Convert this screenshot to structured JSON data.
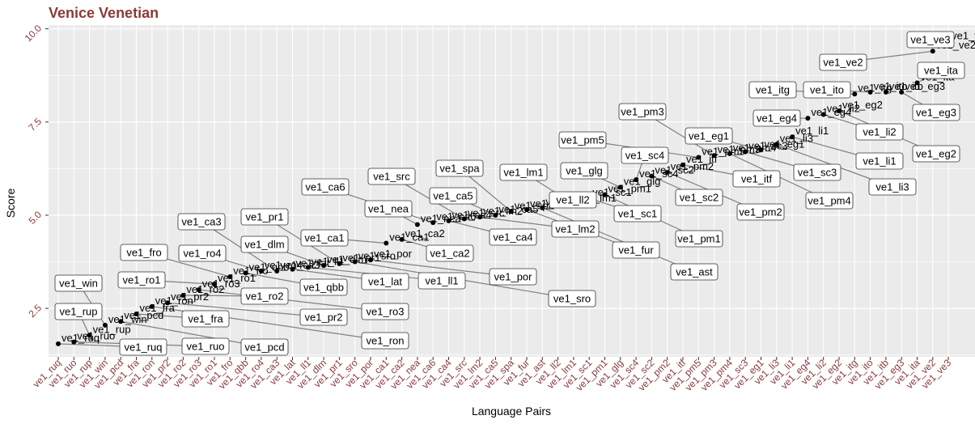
{
  "chart_data": {
    "type": "scatter",
    "title": "Venice Venetian",
    "xlabel": "Language Pairs",
    "ylabel": "Score",
    "ylim": [
      1.2,
      10.1
    ],
    "yticks": [
      2.5,
      5.0,
      7.5,
      10.0
    ],
    "ytick_labels": [
      "2.5",
      "5.0",
      "7.5",
      "10.0"
    ],
    "grid": true,
    "legend": "none",
    "colors": {
      "title": "#8B3A3A",
      "tick": "#8B3A3A",
      "panel": "#EBEBEB",
      "grid": "#FFFFFF",
      "point": "#000000",
      "connector": "#808080",
      "box_bg": "#FFFFFF",
      "box_border": "#333333"
    },
    "categories": [
      "ve1_ruq",
      "ve1_ruo",
      "ve1_rup",
      "ve1_win",
      "ve1_pcd",
      "ve1_fra",
      "ve1_ron",
      "ve1_pr2",
      "ve1_ro2",
      "ve1_ro3",
      "ve1_ro1",
      "ve1_fro",
      "ve1_qbb",
      "ve1_ro4",
      "ve1_ca3",
      "ve1_lat",
      "ve1_ll1",
      "ve1_dlm",
      "ve1_pr1",
      "ve1_sro",
      "ve1_por",
      "ve1_ca1",
      "ve1_ca2",
      "ve1_nea",
      "ve1_ca6",
      "ve1_ca4",
      "ve1_src",
      "ve1_lm2",
      "ve1_ca5",
      "ve1_spa",
      "ve1_fur",
      "ve1_ast",
      "ve1_ll2",
      "ve1_lm1",
      "ve1_sc1",
      "ve1_pm1",
      "ve1_glg",
      "ve1_sc4",
      "ve1_sc2",
      "ve1_pm2",
      "ve1_itf",
      "ve1_pm5",
      "ve1_pm3",
      "ve1_pm4",
      "ve1_sc3",
      "ve1_eg1",
      "ve1_li3",
      "ve1_li1",
      "ve1_eg4",
      "ve1_li2",
      "ve1_eg2",
      "ve1_itg",
      "ve1_ito",
      "ve1_itb",
      "ve1_eg3",
      "ve1_ita",
      "ve1_ve2",
      "ve1_ve3"
    ],
    "values": [
      1.55,
      1.6,
      1.78,
      2.05,
      2.15,
      2.35,
      2.55,
      2.65,
      2.85,
      3.0,
      3.15,
      3.35,
      3.45,
      3.5,
      3.5,
      3.55,
      3.6,
      3.65,
      3.7,
      3.75,
      3.8,
      4.25,
      4.35,
      4.75,
      4.8,
      4.85,
      4.9,
      4.95,
      5.0,
      5.1,
      5.15,
      5.2,
      5.25,
      5.3,
      5.45,
      5.55,
      5.75,
      5.95,
      6.05,
      6.15,
      6.35,
      6.55,
      6.6,
      6.65,
      6.7,
      6.75,
      6.9,
      7.1,
      7.6,
      7.7,
      7.8,
      8.25,
      8.3,
      8.3,
      8.3,
      8.55,
      9.4,
      9.65
    ],
    "point_labels": [
      "ve1_ruq",
      "ve1_ruo",
      "ve1_rup",
      "ve1_win",
      "ve1_pcd",
      "ve1_fra",
      "ve1_ron",
      "ve1_pr2",
      "ve1_ro2",
      "ve1_ro3",
      "ve1_ro1",
      "ve1_fro",
      "ve1_qbb",
      "ve1_ro4",
      "ve1_ca3",
      "ve1_lat",
      "ve1_ll1",
      "ve1_dlm",
      "ve1_pr1",
      "ve1_sro",
      "ve1_por",
      "ve1_ca1",
      "ve1_ca2",
      "ve1_nea",
      "ve1_ca6",
      "ve1_ca4",
      "ve1_src",
      "ve1_lm2",
      "ve1_ca5",
      "ve1_spa",
      "ve1_fur",
      "ve1_ast",
      "ve1_ll2",
      "ve1_lm1",
      "ve1_sc1",
      "ve1_pm1",
      "ve1_glg",
      "ve1_sc4",
      "ve1_sc2",
      "ve1_pm2",
      "ve1_itf",
      "ve1_pm5",
      "ve1_pm3",
      "ve1_pm4",
      "ve1_sc3",
      "ve1_eg1",
      "ve1_li3",
      "ve1_li1",
      "ve1_eg4",
      "ve1_li2",
      "ve1_eg2",
      "ve1_itg",
      "ve1_ito",
      "ve1_itb",
      "ve1_eg3",
      "ve1_ita",
      "ve1_ve2",
      "ve1_ve3"
    ],
    "boxed_labels": [
      {
        "text": "ve1_ve3",
        "anchor": 57
      },
      {
        "text": "ve1_ve2",
        "anchor": 56
      },
      {
        "text": "ve1_ita",
        "anchor": 55
      },
      {
        "text": "ve1_itg",
        "anchor": 51
      },
      {
        "text": "ve1_ito",
        "anchor": 52
      },
      {
        "text": "ve1_pm3",
        "anchor": 42
      },
      {
        "text": "ve1_eg4",
        "anchor": 48
      },
      {
        "text": "ve1_eg3",
        "anchor": 54
      },
      {
        "text": "ve1_li2",
        "anchor": 49
      },
      {
        "text": "ve1_eg1",
        "anchor": 45
      },
      {
        "text": "ve1_pm5",
        "anchor": 41
      },
      {
        "text": "ve1_eg2",
        "anchor": 50
      },
      {
        "text": "ve1_sc4",
        "anchor": 37
      },
      {
        "text": "ve1_li1",
        "anchor": 47
      },
      {
        "text": "ve1_spa",
        "anchor": 29
      },
      {
        "text": "ve1_lm1",
        "anchor": 33
      },
      {
        "text": "ve1_glg",
        "anchor": 36
      },
      {
        "text": "ve1_sc3",
        "anchor": 44
      },
      {
        "text": "ve1_src",
        "anchor": 26
      },
      {
        "text": "ve1_itf",
        "anchor": 40
      },
      {
        "text": "ve1_ca6",
        "anchor": 24
      },
      {
        "text": "ve1_li3",
        "anchor": 46
      },
      {
        "text": "ve1_ca5",
        "anchor": 28
      },
      {
        "text": "ve1_ll2",
        "anchor": 32
      },
      {
        "text": "ve1_sc2",
        "anchor": 38
      },
      {
        "text": "ve1_pm4",
        "anchor": 43
      },
      {
        "text": "ve1_nea",
        "anchor": 23
      },
      {
        "text": "ve1_sc1",
        "anchor": 34
      },
      {
        "text": "ve1_pm2",
        "anchor": 39
      },
      {
        "text": "ve1_ca3",
        "anchor": 14
      },
      {
        "text": "ve1_pr1",
        "anchor": 18
      },
      {
        "text": "ve1_lm2",
        "anchor": 27
      },
      {
        "text": "ve1_ca1",
        "anchor": 21
      },
      {
        "text": "ve1_ca4",
        "anchor": 25
      },
      {
        "text": "ve1_pm1",
        "anchor": 35
      },
      {
        "text": "ve1_dlm",
        "anchor": 17
      },
      {
        "text": "ve1_fur",
        "anchor": 30
      },
      {
        "text": "ve1_fro",
        "anchor": 11
      },
      {
        "text": "ve1_ro4",
        "anchor": 13
      },
      {
        "text": "ve1_ca2",
        "anchor": 22
      },
      {
        "text": "ve1_ast",
        "anchor": 31
      },
      {
        "text": "ve1_ro1",
        "anchor": 10
      },
      {
        "text": "ve1_lat",
        "anchor": 15
      },
      {
        "text": "ve1_ll1",
        "anchor": 16
      },
      {
        "text": "ve1_por",
        "anchor": 20
      },
      {
        "text": "ve1_win",
        "anchor": 3
      },
      {
        "text": "ve1_qbb",
        "anchor": 12
      },
      {
        "text": "ve1_ro2",
        "anchor": 8
      },
      {
        "text": "ve1_sro",
        "anchor": 19
      },
      {
        "text": "ve1_rup",
        "anchor": 2
      },
      {
        "text": "ve1_ro3",
        "anchor": 9
      },
      {
        "text": "ve1_fra",
        "anchor": 5
      },
      {
        "text": "ve1_pr2",
        "anchor": 7
      },
      {
        "text": "ve1_ron",
        "anchor": 6
      },
      {
        "text": "ve1_ruq",
        "anchor": 0
      },
      {
        "text": "ve1_ruo",
        "anchor": 1
      },
      {
        "text": "ve1_pcd",
        "anchor": 4
      }
    ]
  }
}
